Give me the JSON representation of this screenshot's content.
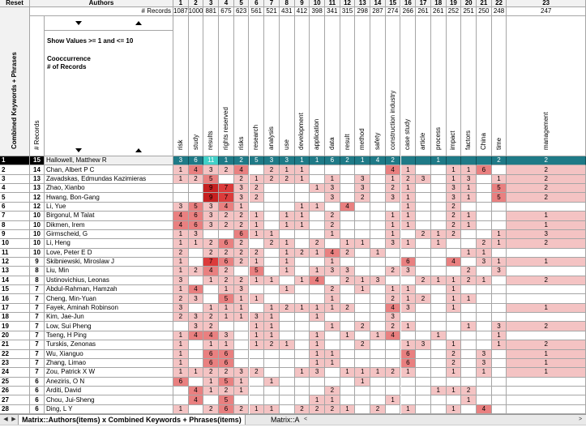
{
  "corner": {
    "reset": "Reset",
    "authors": "Authors",
    "records_label": "# Records",
    "records_col": "# Records",
    "vertical_title": "Combined Keywords + Phrases"
  },
  "filter": {
    "line": "Show Values >= 1 and <= 10",
    "legend1": "Cooccurrence",
    "legend2": "# of Records"
  },
  "colors": {
    "grid": "#a6a6a6",
    "row1_bg": "#1f7a87",
    "row1_special": "#40d0c8",
    "light": "#f4c3c3",
    "mid": "#e98080",
    "dark": "#dc3b3b",
    "darkest": "#c62121"
  },
  "columns": [
    {
      "n": "1",
      "c": "1087",
      "k": "risk"
    },
    {
      "n": "2",
      "c": "1000",
      "k": "study"
    },
    {
      "n": "3",
      "c": "881",
      "k": "results"
    },
    {
      "n": "4",
      "c": "675",
      "k": "rights reserved"
    },
    {
      "n": "5",
      "c": "623",
      "k": "risks"
    },
    {
      "n": "6",
      "c": "561",
      "k": "research"
    },
    {
      "n": "7",
      "c": "521",
      "k": "analysis"
    },
    {
      "n": "8",
      "c": "431",
      "k": "use"
    },
    {
      "n": "9",
      "c": "412",
      "k": "development"
    },
    {
      "n": "10",
      "c": "398",
      "k": "application"
    },
    {
      "n": "11",
      "c": "341",
      "k": "data"
    },
    {
      "n": "12",
      "c": "315",
      "k": "result"
    },
    {
      "n": "13",
      "c": "298",
      "k": "method"
    },
    {
      "n": "14",
      "c": "287",
      "k": "safety"
    },
    {
      "n": "15",
      "c": "274",
      "k": "construction industry"
    },
    {
      "n": "16",
      "c": "266",
      "k": "case study"
    },
    {
      "n": "17",
      "c": "261",
      "k": "article"
    },
    {
      "n": "18",
      "c": "261",
      "k": "process"
    },
    {
      "n": "19",
      "c": "252",
      "k": "impact"
    },
    {
      "n": "20",
      "c": "251",
      "k": "factors"
    },
    {
      "n": "21",
      "c": "250",
      "k": "China"
    },
    {
      "n": "22",
      "c": "248",
      "k": "time"
    },
    {
      "n": "23",
      "c": "247",
      "k": "management"
    }
  ],
  "rows": [
    {
      "n": "1",
      "c": "15",
      "a": "Hallowell, Matthew R",
      "v": [
        "3",
        "6",
        "11",
        "1",
        "2",
        "5",
        "3",
        "3",
        "1",
        "1",
        "6",
        "2",
        "1",
        "4",
        "2",
        "",
        "",
        "1",
        "",
        "",
        "",
        "2",
        "2"
      ]
    },
    {
      "n": "2",
      "c": "14",
      "a": "Chan, Albert P C",
      "v": [
        "1",
        "4",
        "3",
        "2",
        "4",
        "",
        "2",
        "1",
        "1",
        "",
        "",
        "",
        "",
        "",
        "4",
        "1",
        "",
        "",
        "1",
        "1",
        "6",
        "",
        "2"
      ]
    },
    {
      "n": "3",
      "c": "13",
      "a": "Zavadskas, Edmundas Kazimieras",
      "v": [
        "1",
        "2",
        "5",
        "",
        "2",
        "1",
        "2",
        "2",
        "1",
        "",
        "1",
        "",
        "3",
        "",
        "1",
        "2",
        "3",
        "",
        "1",
        "3",
        "",
        "1",
        "2"
      ]
    },
    {
      "n": "4",
      "c": "13",
      "a": "Zhao, Xianbo",
      "v": [
        "",
        "",
        "9",
        "7",
        "3",
        "2",
        "",
        "",
        "",
        "1",
        "3",
        "",
        "3",
        "",
        "2",
        "1",
        "",
        "",
        "3",
        "1",
        "",
        "5",
        "2"
      ]
    },
    {
      "n": "5",
      "c": "12",
      "a": "Hwang, Bon-Gang",
      "v": [
        "",
        "",
        "9",
        "7",
        "3",
        "2",
        "",
        "",
        "",
        "",
        "3",
        "",
        "2",
        "",
        "3",
        "1",
        "",
        "",
        "3",
        "1",
        "",
        "5",
        "2"
      ]
    },
    {
      "n": "6",
      "c": "12",
      "a": "Li, Yue",
      "v": [
        "3",
        "5",
        "3",
        "4",
        "1",
        "",
        "",
        "",
        "1",
        "1",
        "",
        "4",
        "",
        "",
        "",
        "1",
        "",
        "",
        "2",
        "",
        "",
        "",
        ""
      ]
    },
    {
      "n": "7",
      "c": "10",
      "a": "Birgonul, M Talat",
      "v": [
        "4",
        "6",
        "3",
        "2",
        "2",
        "1",
        "",
        "1",
        "1",
        "",
        "2",
        "",
        "",
        "",
        "1",
        "1",
        "",
        "",
        "2",
        "1",
        "",
        "",
        "1"
      ]
    },
    {
      "n": "8",
      "c": "10",
      "a": "Dikmen, Irem",
      "v": [
        "4",
        "6",
        "3",
        "2",
        "2",
        "1",
        "",
        "1",
        "1",
        "",
        "2",
        "",
        "",
        "",
        "1",
        "1",
        "",
        "",
        "2",
        "1",
        "",
        "",
        "1"
      ]
    },
    {
      "n": "9",
      "c": "10",
      "a": "Girmscheid, G",
      "v": [
        "1",
        "3",
        "",
        "",
        "6",
        "1",
        "1",
        "",
        "",
        "",
        "1",
        "",
        "",
        "",
        "1",
        "",
        "2",
        "1",
        "2",
        "",
        "",
        "1",
        "3"
      ]
    },
    {
      "n": "10",
      "c": "10",
      "a": "Li, Heng",
      "v": [
        "1",
        "1",
        "2",
        "6",
        "2",
        "",
        "2",
        "1",
        "",
        "2",
        "",
        "1",
        "1",
        "",
        "3",
        "1",
        "",
        "1",
        "",
        "",
        "2",
        "1",
        "2"
      ]
    },
    {
      "n": "11",
      "c": "10",
      "a": "Love, Peter E D",
      "v": [
        "2",
        "",
        "2",
        "2",
        "2",
        "2",
        "",
        "1",
        "2",
        "1",
        "4",
        "2",
        "",
        "1",
        "",
        "",
        "",
        "",
        "",
        "1",
        "1",
        "",
        ""
      ]
    },
    {
      "n": "12",
      "c": "9",
      "a": "Skibniewski, Miroslaw J",
      "v": [
        "1",
        "",
        "7",
        "6",
        "2",
        "1",
        "",
        "1",
        "",
        "",
        "1",
        "",
        "",
        "",
        "",
        "6",
        "",
        "",
        "4",
        "",
        "3",
        "1",
        "1"
      ]
    },
    {
      "n": "13",
      "c": "8",
      "a": "Liu, Min",
      "v": [
        "1",
        "2",
        "4",
        "2",
        "",
        "5",
        "",
        "1",
        "",
        "1",
        "3",
        "3",
        "",
        "",
        "2",
        "3",
        "",
        "",
        "",
        "2",
        "",
        "3",
        ""
      ]
    },
    {
      "n": "14",
      "c": "8",
      "a": "Ustinovichius, Leonas",
      "v": [
        "3",
        "",
        "1",
        "2",
        "2",
        "1",
        "1",
        "",
        "1",
        "4",
        "",
        "2",
        "1",
        "3",
        "",
        "",
        "2",
        "1",
        "1",
        "2",
        "1",
        "",
        "2"
      ]
    },
    {
      "n": "15",
      "c": "7",
      "a": "Abdul-Rahman, Hamzah",
      "v": [
        "1",
        "4",
        "",
        "1",
        "3",
        "",
        "",
        "1",
        "",
        "",
        "2",
        "",
        "1",
        "",
        "1",
        "1",
        "",
        "",
        "1",
        "",
        "",
        "",
        ""
      ]
    },
    {
      "n": "16",
      "c": "7",
      "a": "Cheng, Min-Yuan",
      "v": [
        "2",
        "3",
        "",
        "5",
        "1",
        "1",
        "",
        "",
        "",
        "",
        "1",
        "",
        "",
        "",
        "2",
        "1",
        "2",
        "",
        "1",
        "1",
        "",
        "",
        ""
      ]
    },
    {
      "n": "17",
      "c": "7",
      "a": "Fayek, Aminah Robinson",
      "v": [
        "3",
        "",
        "1",
        "1",
        "1",
        "",
        "1",
        "2",
        "1",
        "1",
        "1",
        "2",
        "",
        "",
        "4",
        "3",
        "",
        "",
        "1",
        "",
        "",
        "",
        "1"
      ]
    },
    {
      "n": "18",
      "c": "7",
      "a": "Kim, Jae-Jun",
      "v": [
        "2",
        "3",
        "2",
        "1",
        "1",
        "3",
        "1",
        "",
        "",
        "1",
        "",
        "",
        "",
        "",
        "3",
        "",
        "",
        "",
        "",
        "",
        "",
        "",
        ""
      ]
    },
    {
      "n": "19",
      "c": "7",
      "a": "Low, Sui Pheng",
      "v": [
        "",
        "3",
        "2",
        "",
        "",
        "1",
        "1",
        "",
        "",
        "",
        "1",
        "",
        "2",
        "",
        "2",
        "1",
        "",
        "",
        "",
        "1",
        "",
        "3",
        "2"
      ]
    },
    {
      "n": "20",
      "c": "7",
      "a": "Tseng, H Ping",
      "v": [
        "1",
        "4",
        "4",
        "3",
        "",
        "1",
        "1",
        "",
        "",
        "1",
        "",
        "1",
        "",
        "1",
        "4",
        "",
        "",
        "1",
        "",
        "",
        "",
        "1",
        ""
      ]
    },
    {
      "n": "21",
      "c": "7",
      "a": "Turskis, Zenonas",
      "v": [
        "1",
        "",
        "1",
        "1",
        "",
        "1",
        "2",
        "1",
        "",
        "1",
        "",
        "",
        "2",
        "",
        "",
        "1",
        "3",
        "",
        "1",
        "",
        "",
        "1",
        "2"
      ]
    },
    {
      "n": "22",
      "c": "7",
      "a": "Wu, Xianguo",
      "v": [
        "1",
        "",
        "6",
        "6",
        "",
        "",
        "",
        "",
        "",
        "1",
        "1",
        "",
        "",
        "",
        "",
        "6",
        "",
        "",
        "2",
        "",
        "3",
        "",
        "1"
      ]
    },
    {
      "n": "23",
      "c": "7",
      "a": "Zhang, Limao",
      "v": [
        "1",
        "",
        "6",
        "6",
        "",
        "",
        "",
        "",
        "",
        "1",
        "1",
        "",
        "",
        "",
        "",
        "6",
        "",
        "",
        "2",
        "",
        "3",
        "",
        "1"
      ]
    },
    {
      "n": "24",
      "c": "7",
      "a": "Zou, Patrick X W",
      "v": [
        "1",
        "1",
        "2",
        "2",
        "3",
        "2",
        "",
        "",
        "1",
        "3",
        "",
        "1",
        "1",
        "1",
        "2",
        "1",
        "",
        "",
        "1",
        "",
        "1",
        "",
        "1"
      ]
    },
    {
      "n": "25",
      "c": "6",
      "a": "Aneziris, O N",
      "v": [
        "6",
        "",
        "1",
        "5",
        "1",
        "",
        "1",
        "",
        "",
        "",
        "",
        "",
        "1",
        "",
        "",
        "",
        "",
        "",
        "",
        "",
        "",
        "",
        ""
      ]
    },
    {
      "n": "26",
      "c": "6",
      "a": "Arditi, David",
      "v": [
        "",
        "4",
        "1",
        "2",
        "1",
        "",
        "",
        "",
        "",
        "",
        "2",
        "",
        "",
        "",
        "",
        "",
        "",
        "1",
        "1",
        "2",
        "",
        "",
        ""
      ]
    },
    {
      "n": "27",
      "c": "6",
      "a": "Chou, Jui-Sheng",
      "v": [
        "",
        "4",
        "",
        "5",
        "",
        "",
        "",
        "",
        "",
        "1",
        "1",
        "",
        "",
        "",
        "1",
        "",
        "",
        "",
        "",
        "1",
        "",
        "",
        ""
      ]
    },
    {
      "n": "28",
      "c": "6",
      "a": "Ding, L Y",
      "v": [
        "1",
        "",
        "2",
        "6",
        "2",
        "1",
        "1",
        "",
        "2",
        "2",
        "2",
        "1",
        "",
        "2",
        "",
        "1",
        "",
        "",
        "1",
        "",
        "4",
        "",
        ""
      ]
    }
  ],
  "tabs": {
    "active": "Matrix::Authors(items) x Combined Keywords + Phrases(items)",
    "next": "Matrix::A",
    "scroll_left": "<",
    "scroll_right": ">"
  }
}
